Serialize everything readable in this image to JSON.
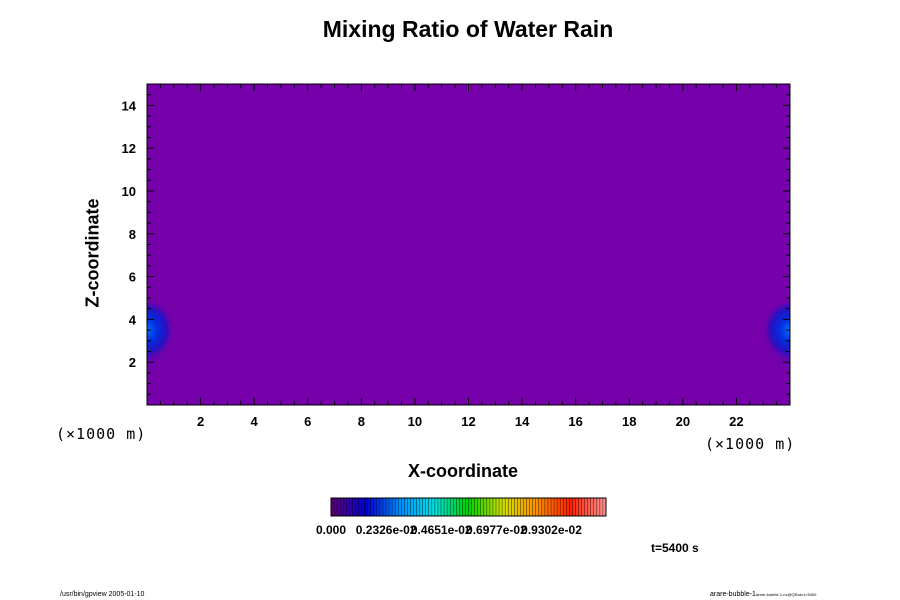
{
  "chart_data": {
    "type": "heatmap",
    "title": "Mixing Ratio of Water Rain",
    "xlabel": "X-coordinate",
    "ylabel": "Z-coordinate",
    "x_unit_label": "(×1000 m)",
    "y_unit_label": "(×1000 m)",
    "xlim": [
      0,
      24
    ],
    "ylim": [
      0,
      15
    ],
    "x_ticks": [
      2,
      4,
      6,
      8,
      10,
      12,
      14,
      16,
      18,
      20,
      22
    ],
    "y_ticks": [
      2,
      4,
      6,
      8,
      10,
      12,
      14
    ],
    "colorbar": {
      "min": 0.0,
      "max": 0.0116,
      "labels": [
        "0.000",
        "0.2326e-02",
        "0.4651e-02",
        "0.6977e-02",
        "0.9302e-02"
      ],
      "colors": [
        "#5a007a",
        "#0000d0",
        "#0090ff",
        "#00e0e0",
        "#00d000",
        "#d0e000",
        "#ff9000",
        "#ff2000",
        "#ff9090"
      ]
    },
    "background_color": "#7600aa",
    "features": [
      {
        "x": 0,
        "z": 3.5,
        "peak": 0.0026
      },
      {
        "x": 24,
        "z": 3.5,
        "peak": 0.0026
      }
    ],
    "time_label": "t=5400 s"
  },
  "footer": {
    "left": "/usr/bin/gpview 2005-01-10",
    "right_main": "arare-bubble-1",
    "right_sub": "arare-bubble-1.nc@QRain,t=5400"
  }
}
